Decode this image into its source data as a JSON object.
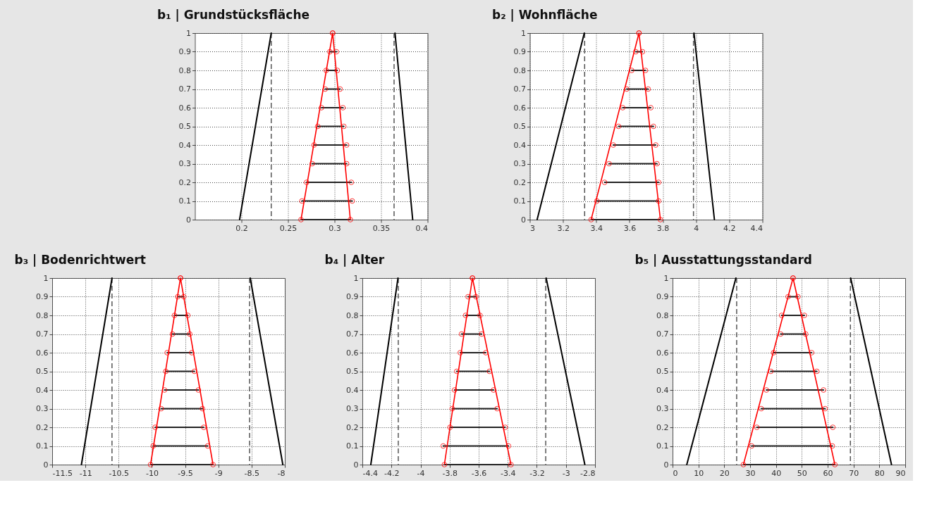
{
  "chart_data": [
    {
      "type": "line",
      "title": "b₁ | Grundstücksfläche",
      "xlim": [
        0.15,
        0.4
      ],
      "xticks": [
        0.2,
        0.25,
        0.3,
        0.35,
        0.4
      ],
      "ylim": [
        0,
        1
      ],
      "yticks": [
        0,
        0.1,
        0.2,
        0.3,
        0.4,
        0.5,
        0.6,
        0.7,
        0.8,
        0.9,
        1
      ],
      "grid": true,
      "ref_lines": [
        {
          "axis": "x",
          "value": 0.232,
          "color": "#555555",
          "line_style": "dashed"
        },
        {
          "axis": "x",
          "value": 0.364,
          "color": "#555555",
          "line_style": "dashed"
        }
      ],
      "series": [
        {
          "color": "#000000",
          "x": [
            0.198,
            0.232
          ],
          "values": [
            0,
            1
          ]
        },
        {
          "color": "#000000",
          "x": [
            0.365,
            0.384
          ],
          "values": [
            1,
            0
          ]
        },
        {
          "color": "#222222",
          "x": [
            0.264,
            0.317
          ],
          "values": [
            0,
            0
          ]
        },
        {
          "color": "#222222",
          "x": [
            0.265,
            0.319
          ],
          "values": [
            0.1,
            0.1
          ]
        },
        {
          "color": "#222222",
          "x": [
            0.27,
            0.318
          ],
          "values": [
            0.2,
            0.2
          ]
        },
        {
          "color": "#222222",
          "x": [
            0.276,
            0.313
          ],
          "values": [
            0.3,
            0.3
          ]
        },
        {
          "color": "#222222",
          "x": [
            0.278,
            0.313
          ],
          "values": [
            0.4,
            0.4
          ]
        },
        {
          "color": "#222222",
          "x": [
            0.282,
            0.31
          ],
          "values": [
            0.5,
            0.5
          ]
        },
        {
          "color": "#222222",
          "x": [
            0.286,
            0.309
          ],
          "values": [
            0.6,
            0.6
          ]
        },
        {
          "color": "#222222",
          "x": [
            0.29,
            0.306
          ],
          "values": [
            0.7,
            0.7
          ]
        },
        {
          "color": "#222222",
          "x": [
            0.291,
            0.303
          ],
          "values": [
            0.8,
            0.8
          ]
        },
        {
          "color": "#222222",
          "x": [
            0.295,
            0.302
          ],
          "values": [
            0.9,
            0.9
          ]
        },
        {
          "color": "#ff0000",
          "x": [
            0.264,
            0.298,
            0.317
          ],
          "values": [
            0,
            1,
            0
          ]
        },
        {
          "type": "scatter",
          "marker": "circle",
          "color": "#ff0000",
          "x": [
            0.264,
            0.265,
            0.27,
            0.276,
            0.278,
            0.282,
            0.286,
            0.29,
            0.291,
            0.295,
            0.298
          ],
          "values": [
            0,
            0.1,
            0.2,
            0.3,
            0.4,
            0.5,
            0.6,
            0.7,
            0.8,
            0.9,
            1
          ]
        },
        {
          "type": "scatter",
          "marker": "circle",
          "color": "#ff0000",
          "x": [
            0.317,
            0.319,
            0.318,
            0.313,
            0.313,
            0.31,
            0.309,
            0.306,
            0.303,
            0.302,
            0.298
          ],
          "values": [
            0,
            0.1,
            0.2,
            0.3,
            0.4,
            0.5,
            0.6,
            0.7,
            0.8,
            0.9,
            1
          ]
        }
      ]
    },
    {
      "type": "line",
      "title": "b₂ | Wohnfläche",
      "xlim": [
        3,
        4.4
      ],
      "xticks": [
        3,
        3.2,
        3.4,
        3.6,
        3.8,
        4,
        4.2,
        4.4
      ],
      "ylim": [
        0,
        1
      ],
      "yticks": [
        0,
        0.1,
        0.2,
        0.3,
        0.4,
        0.5,
        0.6,
        0.7,
        0.8,
        0.9,
        1
      ],
      "grid": true,
      "ref_lines": [
        {
          "axis": "x",
          "value": 3.33,
          "color": "#555555",
          "line_style": "dashed"
        },
        {
          "axis": "x",
          "value": 3.985,
          "color": "#555555",
          "line_style": "dashed"
        }
      ],
      "series": [
        {
          "color": "#000000",
          "x": [
            3.044,
            3.328
          ],
          "values": [
            0,
            1
          ]
        },
        {
          "color": "#000000",
          "x": [
            3.988,
            4.111
          ],
          "values": [
            1,
            0
          ]
        },
        {
          "color": "#222222",
          "x": [
            3.369,
            3.786
          ],
          "values": [
            0,
            0
          ]
        },
        {
          "color": "#222222",
          "x": [
            3.404,
            3.775
          ],
          "values": [
            0.1,
            0.1
          ]
        },
        {
          "color": "#222222",
          "x": [
            3.45,
            3.775
          ],
          "values": [
            0.2,
            0.2
          ]
        },
        {
          "color": "#222222",
          "x": [
            3.477,
            3.765
          ],
          "values": [
            0.3,
            0.3
          ]
        },
        {
          "color": "#222222",
          "x": [
            3.502,
            3.758
          ],
          "values": [
            0.4,
            0.4
          ]
        },
        {
          "color": "#222222",
          "x": [
            3.534,
            3.744
          ],
          "values": [
            0.5,
            0.5
          ]
        },
        {
          "color": "#222222",
          "x": [
            3.559,
            3.728
          ],
          "values": [
            0.6,
            0.6
          ]
        },
        {
          "color": "#222222",
          "x": [
            3.583,
            3.712
          ],
          "values": [
            0.7,
            0.7
          ]
        },
        {
          "color": "#222222",
          "x": [
            3.613,
            3.696
          ],
          "values": [
            0.8,
            0.8
          ]
        },
        {
          "color": "#222222",
          "x": [
            3.638,
            3.678
          ],
          "values": [
            0.9,
            0.9
          ]
        },
        {
          "color": "#ff0000",
          "x": [
            3.369,
            3.657,
            3.786
          ],
          "values": [
            0,
            1,
            0
          ]
        },
        {
          "type": "scatter",
          "marker": "circle",
          "color": "#ff0000",
          "x": [
            3.369,
            3.404,
            3.45,
            3.477,
            3.502,
            3.534,
            3.559,
            3.583,
            3.613,
            3.638,
            3.657
          ],
          "values": [
            0,
            0.1,
            0.2,
            0.3,
            0.4,
            0.5,
            0.6,
            0.7,
            0.8,
            0.9,
            1
          ]
        },
        {
          "type": "scatter",
          "marker": "circle",
          "color": "#ff0000",
          "x": [
            3.786,
            3.775,
            3.775,
            3.765,
            3.758,
            3.744,
            3.728,
            3.712,
            3.696,
            3.678,
            3.657
          ],
          "values": [
            0,
            0.1,
            0.2,
            0.3,
            0.4,
            0.5,
            0.6,
            0.7,
            0.8,
            0.9,
            1
          ]
        }
      ]
    },
    {
      "type": "line",
      "title": "b₃ | Bodenrichtwert",
      "xlim": [
        -11.5,
        -8
      ],
      "xticks": [
        -11.5,
        -11,
        -10.5,
        -10,
        -9.5,
        -9,
        -8.5,
        -8
      ],
      "ylim": [
        0,
        1
      ],
      "yticks": [
        0,
        0.1,
        0.2,
        0.3,
        0.4,
        0.5,
        0.6,
        0.7,
        0.8,
        0.9,
        1
      ],
      "grid": true,
      "ref_lines": [
        {
          "axis": "x",
          "value": -10.6,
          "color": "#555555",
          "line_style": "dashed"
        },
        {
          "axis": "x",
          "value": -8.53,
          "color": "#555555",
          "line_style": "dashed"
        }
      ],
      "series": [
        {
          "color": "#000000",
          "x": [
            -11.06,
            -10.6
          ],
          "values": [
            0,
            1
          ]
        },
        {
          "color": "#000000",
          "x": [
            -8.52,
            -8.03
          ],
          "values": [
            1,
            0
          ]
        },
        {
          "color": "#222222",
          "x": [
            -10.02,
            -9.08
          ],
          "values": [
            0,
            0
          ]
        },
        {
          "color": "#222222",
          "x": [
            -9.98,
            -9.16
          ],
          "values": [
            0.1,
            0.1
          ]
        },
        {
          "color": "#222222",
          "x": [
            -9.95,
            -9.22
          ],
          "values": [
            0.2,
            0.2
          ]
        },
        {
          "color": "#222222",
          "x": [
            -9.86,
            -9.24
          ],
          "values": [
            0.3,
            0.3
          ]
        },
        {
          "color": "#222222",
          "x": [
            -9.81,
            -9.3
          ],
          "values": [
            0.4,
            0.4
          ]
        },
        {
          "color": "#222222",
          "x": [
            -9.79,
            -9.36
          ],
          "values": [
            0.5,
            0.5
          ]
        },
        {
          "color": "#222222",
          "x": [
            -9.77,
            -9.4
          ],
          "values": [
            0.6,
            0.6
          ]
        },
        {
          "color": "#222222",
          "x": [
            -9.69,
            -9.43
          ],
          "values": [
            0.7,
            0.7
          ]
        },
        {
          "color": "#222222",
          "x": [
            -9.66,
            -9.46
          ],
          "values": [
            0.8,
            0.8
          ]
        },
        {
          "color": "#222222",
          "x": [
            -9.61,
            -9.52
          ],
          "values": [
            0.9,
            0.9
          ]
        },
        {
          "color": "#ff0000",
          "x": [
            -10.02,
            -9.57,
            -9.08
          ],
          "values": [
            0,
            1,
            0
          ]
        },
        {
          "type": "scatter",
          "marker": "circle",
          "color": "#ff0000",
          "x": [
            -10.02,
            -9.98,
            -9.95,
            -9.86,
            -9.81,
            -9.79,
            -9.77,
            -9.69,
            -9.66,
            -9.61,
            -9.57
          ],
          "values": [
            0,
            0.1,
            0.2,
            0.3,
            0.4,
            0.5,
            0.6,
            0.7,
            0.8,
            0.9,
            1
          ]
        },
        {
          "type": "scatter",
          "marker": "circle",
          "color": "#ff0000",
          "x": [
            -9.08,
            -9.16,
            -9.22,
            -9.24,
            -9.3,
            -9.36,
            -9.4,
            -9.43,
            -9.46,
            -9.52,
            -9.57
          ],
          "values": [
            0,
            0.1,
            0.2,
            0.3,
            0.4,
            0.5,
            0.6,
            0.7,
            0.8,
            0.9,
            1
          ]
        }
      ]
    },
    {
      "type": "line",
      "title": "b₄ | Alter",
      "xlim": [
        -4.4,
        -2.8
      ],
      "xticks": [
        -4.4,
        -4.2,
        -4,
        -3.8,
        -3.6,
        -3.4,
        -3.2,
        -3,
        -2.8
      ],
      "ylim": [
        0,
        1
      ],
      "yticks": [
        0,
        0.1,
        0.2,
        0.3,
        0.4,
        0.5,
        0.6,
        0.7,
        0.8,
        0.9,
        1
      ],
      "grid": true,
      "ref_lines": [
        {
          "axis": "x",
          "value": -4.153,
          "color": "#555555",
          "line_style": "dashed"
        },
        {
          "axis": "x",
          "value": -3.139,
          "color": "#555555",
          "line_style": "dashed"
        }
      ],
      "series": [
        {
          "color": "#000000",
          "x": [
            -4.342,
            -4.155
          ],
          "values": [
            0,
            1
          ]
        },
        {
          "color": "#000000",
          "x": [
            -3.136,
            -2.87
          ],
          "values": [
            1,
            0
          ]
        },
        {
          "color": "#222222",
          "x": [
            -3.836,
            -3.378
          ],
          "values": [
            0,
            0
          ]
        },
        {
          "color": "#222222",
          "x": [
            -3.844,
            -3.395
          ],
          "values": [
            0.1,
            0.1
          ]
        },
        {
          "color": "#222222",
          "x": [
            -3.797,
            -3.418
          ],
          "values": [
            0.2,
            0.2
          ]
        },
        {
          "color": "#222222",
          "x": [
            -3.782,
            -3.473
          ],
          "values": [
            0.3,
            0.3
          ]
        },
        {
          "color": "#222222",
          "x": [
            -3.766,
            -3.498
          ],
          "values": [
            0.4,
            0.4
          ]
        },
        {
          "color": "#222222",
          "x": [
            -3.751,
            -3.526
          ],
          "values": [
            0.5,
            0.5
          ]
        },
        {
          "color": "#222222",
          "x": [
            -3.727,
            -3.551
          ],
          "values": [
            0.6,
            0.6
          ]
        },
        {
          "color": "#222222",
          "x": [
            -3.718,
            -3.58
          ],
          "values": [
            0.7,
            0.7
          ]
        },
        {
          "color": "#222222",
          "x": [
            -3.69,
            -3.591
          ],
          "values": [
            0.8,
            0.8
          ]
        },
        {
          "color": "#222222",
          "x": [
            -3.673,
            -3.619
          ],
          "values": [
            0.9,
            0.9
          ]
        },
        {
          "color": "#ff0000",
          "x": [
            -3.836,
            -3.643,
            -3.378
          ],
          "values": [
            0,
            1,
            0
          ]
        },
        {
          "type": "scatter",
          "marker": "circle",
          "color": "#ff0000",
          "x": [
            -3.836,
            -3.844,
            -3.797,
            -3.782,
            -3.766,
            -3.751,
            -3.727,
            -3.718,
            -3.69,
            -3.673,
            -3.643
          ],
          "values": [
            0,
            0.1,
            0.2,
            0.3,
            0.4,
            0.5,
            0.6,
            0.7,
            0.8,
            0.9,
            1
          ]
        },
        {
          "type": "scatter",
          "marker": "circle",
          "color": "#ff0000",
          "x": [
            -3.378,
            -3.395,
            -3.418,
            -3.473,
            -3.498,
            -3.526,
            -3.551,
            -3.58,
            -3.591,
            -3.619,
            -3.643
          ],
          "values": [
            0,
            0.1,
            0.2,
            0.3,
            0.4,
            0.5,
            0.6,
            0.7,
            0.8,
            0.9,
            1
          ]
        }
      ]
    },
    {
      "type": "line",
      "title": "b₅ | Ausstattungsstandard",
      "xlim": [
        0,
        90
      ],
      "xticks": [
        0,
        10,
        20,
        30,
        40,
        50,
        60,
        70,
        80,
        90
      ],
      "ylim": [
        0,
        1
      ],
      "yticks": [
        0,
        0.1,
        0.2,
        0.3,
        0.4,
        0.5,
        0.6,
        0.7,
        0.8,
        0.9,
        1
      ],
      "grid": true,
      "ref_lines": [
        {
          "axis": "x",
          "value": 24.8,
          "color": "#555555",
          "line_style": "dashed"
        },
        {
          "axis": "x",
          "value": 68.8,
          "color": "#555555",
          "line_style": "dashed"
        }
      ],
      "series": [
        {
          "color": "#000000",
          "x": [
            5.5,
            24.5
          ],
          "values": [
            0,
            1
          ]
        },
        {
          "color": "#000000",
          "x": [
            68.9,
            84.7
          ],
          "values": [
            1,
            0
          ]
        },
        {
          "color": "#222222",
          "x": [
            27.4,
            62.8
          ],
          "values": [
            0,
            0
          ]
        },
        {
          "color": "#222222",
          "x": [
            30.6,
            61.8
          ],
          "values": [
            0.1,
            0.1
          ]
        },
        {
          "color": "#222222",
          "x": [
            32.6,
            62.0
          ],
          "values": [
            0.2,
            0.2
          ]
        },
        {
          "color": "#222222",
          "x": [
            34.3,
            59.0
          ],
          "values": [
            0.3,
            0.3
          ]
        },
        {
          "color": "#222222",
          "x": [
            36.3,
            58.4
          ],
          "values": [
            0.4,
            0.4
          ]
        },
        {
          "color": "#222222",
          "x": [
            38.0,
            55.8
          ],
          "values": [
            0.5,
            0.5
          ]
        },
        {
          "color": "#222222",
          "x": [
            39.1,
            53.8
          ],
          "values": [
            0.6,
            0.6
          ]
        },
        {
          "color": "#222222",
          "x": [
            41.8,
            51.5
          ],
          "values": [
            0.7,
            0.7
          ]
        },
        {
          "color": "#222222",
          "x": [
            42.2,
            51.0
          ],
          "values": [
            0.8,
            0.8
          ]
        },
        {
          "color": "#222222",
          "x": [
            44.7,
            48.5
          ],
          "values": [
            0.9,
            0.9
          ]
        },
        {
          "color": "#ff0000",
          "x": [
            27.4,
            46.6,
            62.8
          ],
          "values": [
            0,
            1,
            0
          ]
        },
        {
          "type": "scatter",
          "marker": "circle",
          "color": "#ff0000",
          "x": [
            27.4,
            30.6,
            32.6,
            34.3,
            36.3,
            38.0,
            39.1,
            41.8,
            42.2,
            44.7,
            46.6
          ],
          "values": [
            0,
            0.1,
            0.2,
            0.3,
            0.4,
            0.5,
            0.6,
            0.7,
            0.8,
            0.9,
            1
          ]
        },
        {
          "type": "scatter",
          "marker": "circle",
          "color": "#ff0000",
          "x": [
            62.8,
            61.8,
            62.0,
            59.0,
            58.4,
            55.8,
            53.8,
            51.5,
            51.0,
            48.5,
            46.6
          ],
          "values": [
            0,
            0.1,
            0.2,
            0.3,
            0.4,
            0.5,
            0.6,
            0.7,
            0.8,
            0.9,
            1
          ]
        }
      ]
    }
  ]
}
